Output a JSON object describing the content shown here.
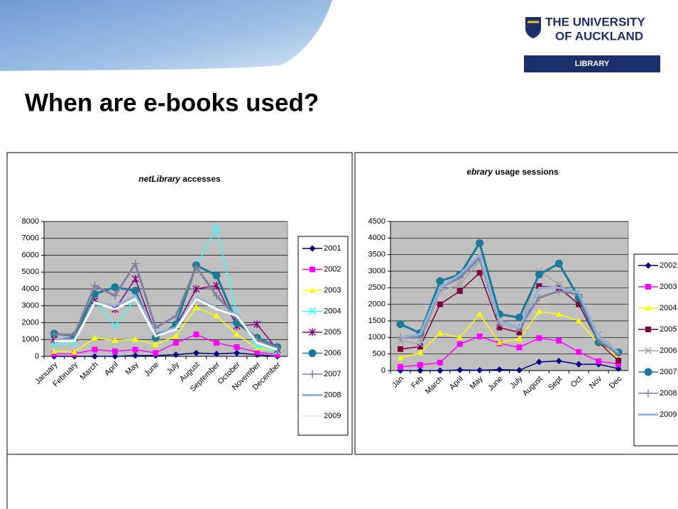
{
  "slide": {
    "title": "When are e-books used?"
  },
  "logo": {
    "line1": "THE UNIVERSITY",
    "line2": "OF AUCKLAND",
    "line3": "LIBRARY"
  },
  "chart_data": [
    {
      "type": "line",
      "title": [
        "netLibrary",
        "accesses"
      ],
      "categories": [
        "January",
        "February",
        "March",
        "April",
        "May",
        "June",
        "July",
        "August",
        "September",
        "October",
        "November",
        "December"
      ],
      "ylim": [
        0,
        8000
      ],
      "yticks": [
        0,
        1000,
        2000,
        3000,
        4000,
        5000,
        6000,
        7000,
        8000
      ],
      "grid": true,
      "series": [
        {
          "name": "2001",
          "color": "#000080",
          "marker": "diamond",
          "values": [
            0,
            0,
            0,
            0,
            50,
            50,
            100,
            200,
            150,
            200,
            100,
            0
          ]
        },
        {
          "name": "2002",
          "color": "#ff00ff",
          "marker": "square",
          "values": [
            150,
            150,
            400,
            300,
            400,
            200,
            800,
            1300,
            800,
            550,
            250,
            100
          ]
        },
        {
          "name": "2003",
          "color": "#ffff00",
          "marker": "triangle",
          "values": [
            300,
            250,
            1100,
            950,
            1000,
            700,
            1200,
            2900,
            2400,
            1300,
            500,
            300
          ]
        },
        {
          "name": "2004",
          "color": "#33ffff",
          "marker": "x",
          "values": [
            700,
            800,
            3300,
            1800,
            3400,
            1200,
            1700,
            5400,
            7600,
            2500,
            600,
            300
          ]
        },
        {
          "name": "2005",
          "color": "#800080",
          "marker": "star",
          "values": [
            1000,
            1100,
            3300,
            2800,
            4600,
            1300,
            1800,
            4000,
            4200,
            1800,
            1900,
            400
          ]
        },
        {
          "name": "2006",
          "color": "#1a7a99",
          "marker": "circle",
          "values": [
            1350,
            1200,
            3700,
            4100,
            3900,
            1100,
            1900,
            5400,
            4800,
            2000,
            1100,
            550
          ]
        },
        {
          "name": "2007",
          "color": "#8080a0",
          "marker": "plus",
          "values": [
            1300,
            1300,
            4200,
            3600,
            5500,
            1700,
            2400,
            5300,
            3600,
            2300,
            1000,
            500
          ]
        },
        {
          "name": "2008",
          "color": "#8cb4dc",
          "marker": "none",
          "values": [
            1000,
            1000,
            3200,
            3000,
            3600,
            1400,
            1700,
            3500,
            2900,
            2500,
            800,
            400
          ]
        },
        {
          "name": "2009",
          "color": "#ffffff",
          "marker": "none",
          "values": [
            900,
            900,
            3200,
            2800,
            3400,
            1200,
            1600,
            3400,
            2800,
            2400,
            800,
            400
          ]
        }
      ]
    },
    {
      "type": "line",
      "title": [
        "ebrary",
        "usage sessions"
      ],
      "categories": [
        "Jan",
        "Feb",
        "March",
        "April",
        "May",
        "June",
        "July",
        "August",
        "Sept",
        "Oct",
        "Nov",
        "Dec"
      ],
      "ylim": [
        0,
        4500
      ],
      "yticks": [
        0,
        500,
        1000,
        1500,
        2000,
        2500,
        3000,
        3500,
        4000,
        4500
      ],
      "grid": true,
      "series": [
        {
          "name": "2002",
          "color": "#000080",
          "marker": "diamond",
          "values": [
            0,
            0,
            0,
            20,
            10,
            30,
            10,
            260,
            290,
            190,
            190,
            60
          ]
        },
        {
          "name": "2003",
          "color": "#ff00ff",
          "marker": "square",
          "values": [
            110,
            170,
            240,
            800,
            1030,
            820,
            700,
            980,
            900,
            560,
            280,
            200
          ]
        },
        {
          "name": "2004",
          "color": "#ffff00",
          "marker": "triangle",
          "values": [
            380,
            540,
            1130,
            1000,
            1700,
            850,
            950,
            1780,
            1700,
            1500,
            800,
            400
          ]
        },
        {
          "name": "2005",
          "color": "#800040",
          "marker": "square",
          "values": [
            650,
            720,
            2000,
            2400,
            2950,
            1300,
            1150,
            2550,
            2500,
            2000,
            850,
            300
          ]
        },
        {
          "name": "2006",
          "color": "#a0a0b0",
          "marker": "x",
          "values": [
            900,
            800,
            2400,
            2600,
            3300,
            1400,
            1250,
            3000,
            2600,
            2200,
            1100,
            550
          ]
        },
        {
          "name": "2007",
          "color": "#1a7a99",
          "marker": "circle",
          "values": [
            1400,
            1130,
            2700,
            2900,
            3850,
            1700,
            1600,
            2900,
            3230,
            2200,
            850,
            550
          ]
        },
        {
          "name": "2008",
          "color": "#8080a0",
          "marker": "plus",
          "values": [
            1000,
            1000,
            2500,
            2800,
            3400,
            1500,
            1300,
            2200,
            2400,
            2300,
            900,
            500
          ]
        },
        {
          "name": "2009",
          "color": "#8cb4dc",
          "marker": "none",
          "values": [
            1000,
            1100,
            2500,
            2900,
            3500,
            1500,
            1300,
            2500,
            2500,
            2350,
            1000,
            550
          ]
        }
      ]
    }
  ]
}
